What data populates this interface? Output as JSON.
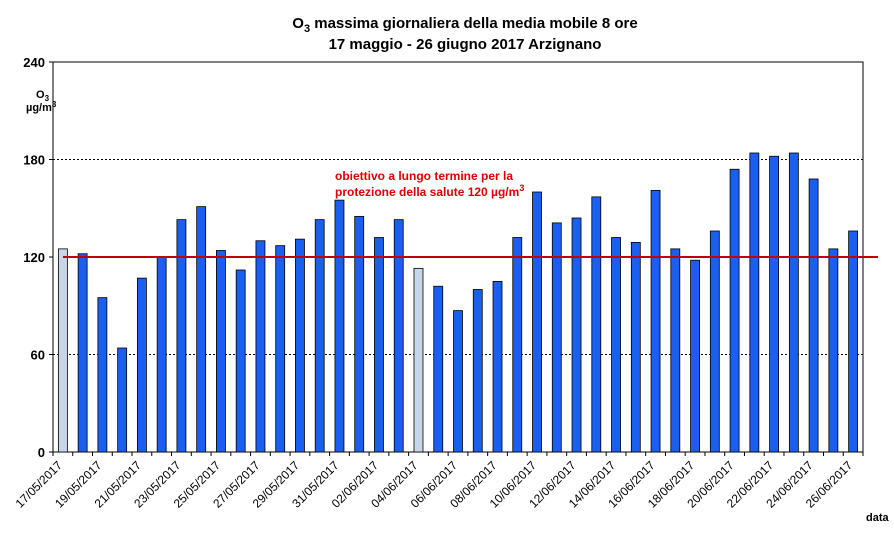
{
  "chart_data": {
    "type": "bar",
    "title_parts": [
      "O",
      "3",
      " massima giornaliera della media mobile 8 ore"
    ],
    "subtitle": "17 maggio - 26 giugno 2017 Arzignano",
    "ylabel_parts": [
      "O",
      "3"
    ],
    "ylabel_unit_parts": [
      "µg/m",
      "3"
    ],
    "xlabel": "data",
    "ylim": [
      0,
      240
    ],
    "yticks": [
      0,
      60,
      120,
      180,
      240
    ],
    "grid_dashed": [
      60,
      180
    ],
    "categories": [
      "17/05/2017",
      "18/05/2017",
      "19/05/2017",
      "20/05/2017",
      "21/05/2017",
      "22/05/2017",
      "23/05/2017",
      "24/05/2017",
      "25/05/2017",
      "26/05/2017",
      "27/05/2017",
      "28/05/2017",
      "29/05/2017",
      "30/05/2017",
      "31/05/2017",
      "01/06/2017",
      "02/06/2017",
      "03/06/2017",
      "04/06/2017",
      "05/06/2017",
      "06/06/2017",
      "07/06/2017",
      "08/06/2017",
      "09/06/2017",
      "10/06/2017",
      "11/06/2017",
      "12/06/2017",
      "13/06/2017",
      "14/06/2017",
      "15/06/2017",
      "16/06/2017",
      "17/06/2017",
      "18/06/2017",
      "19/06/2017",
      "20/06/2017",
      "21/06/2017",
      "22/06/2017",
      "23/06/2017",
      "24/06/2017",
      "25/06/2017",
      "26/06/2017"
    ],
    "values": [
      125,
      122,
      95,
      64,
      107,
      120,
      143,
      151,
      124,
      112,
      130,
      127,
      131,
      143,
      155,
      145,
      132,
      143,
      113,
      102,
      87,
      100,
      105,
      132,
      160,
      141,
      144,
      157,
      132,
      129,
      161,
      125,
      118,
      136,
      174,
      184,
      182,
      184,
      168,
      125,
      136
    ],
    "highlight_indices": [
      0,
      18
    ],
    "tick_label_every": 2,
    "threshold": {
      "value": 120,
      "label_line1": "obiettivo a lungo termine per la",
      "label_line2_parts": [
        "protezione della salute 120 µg/m",
        "3"
      ]
    },
    "colors": {
      "bar": "#1a5ff0",
      "bar_highlight": "#c8d6e8",
      "threshold": "#c00000",
      "annotation": "#e00000"
    }
  }
}
